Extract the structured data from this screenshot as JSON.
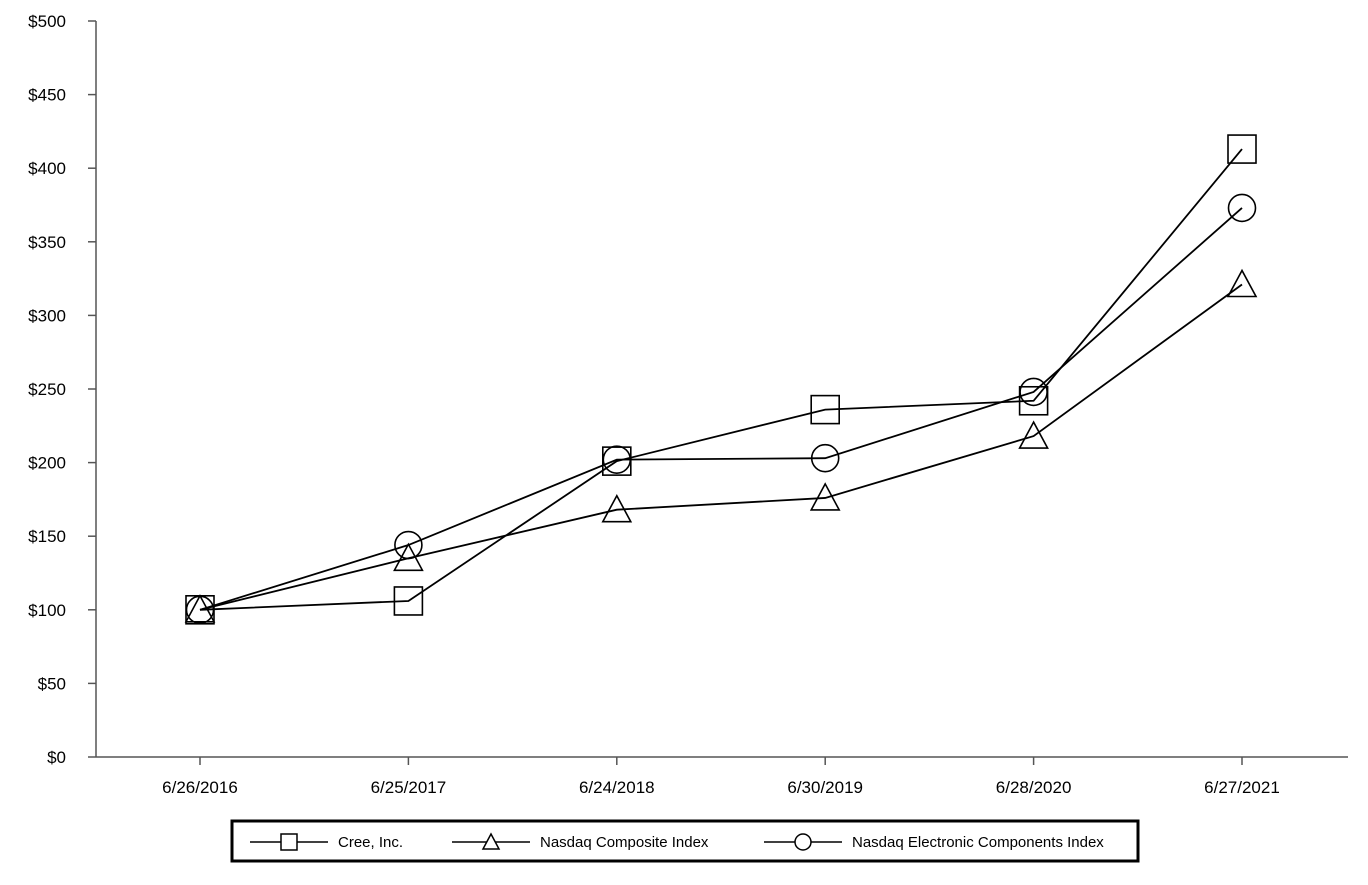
{
  "chart_data": {
    "type": "line",
    "title": "",
    "xlabel": "",
    "ylabel": "",
    "categories": [
      "6/26/2016",
      "6/25/2017",
      "6/24/2018",
      "6/30/2019",
      "6/28/2020",
      "6/27/2021"
    ],
    "ylim": [
      0,
      500
    ],
    "yticks": [
      0,
      50,
      100,
      150,
      200,
      250,
      300,
      350,
      400,
      450,
      500
    ],
    "ytick_labels": [
      "$0",
      "$50",
      "$100",
      "$150",
      "$200",
      "$250",
      "$300",
      "$350",
      "$400",
      "$450",
      "$500"
    ],
    "grid": false,
    "legend_position": "bottom",
    "series": [
      {
        "name": "Cree, Inc.",
        "marker": "square",
        "values": [
          100,
          106,
          201,
          236,
          242,
          413
        ]
      },
      {
        "name": "Nasdaq Composite Index",
        "marker": "triangle",
        "values": [
          100,
          135,
          168,
          176,
          218,
          321
        ]
      },
      {
        "name": "Nasdaq Electronic Components Index",
        "marker": "circle",
        "values": [
          100,
          144,
          202,
          203,
          248,
          373
        ]
      }
    ]
  }
}
